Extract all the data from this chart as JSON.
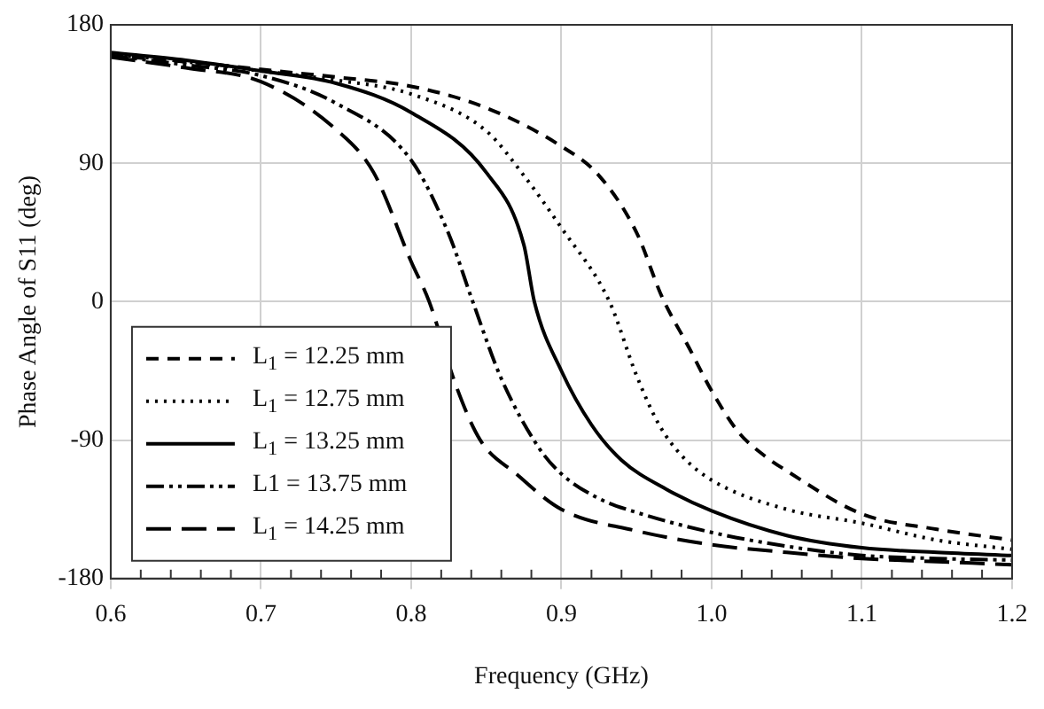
{
  "chart_data": {
    "type": "line",
    "xlabel": "Frequency (GHz)",
    "ylabel": "Phase Angle of S11 (deg)",
    "xlim": [
      0.6,
      1.2
    ],
    "xticks": [
      0.6,
      {
        "value": 0.7,
        "label": "0.7"
      },
      0.8,
      0.9,
      {
        "value": 1.0,
        "label": "1.0"
      },
      1.1,
      1.2
    ],
    "ylim": [
      -180,
      180
    ],
    "yticks": [
      -180,
      -90,
      0,
      90,
      180
    ],
    "grid": true,
    "legend": "bottom left",
    "marker": "none",
    "series": [
      {
        "name": "L$_{1}$ = 12.25 mm",
        "color": "#000000",
        "line_style": "dashed",
        "x": [
          0.6,
          0.65,
          0.7,
          0.75,
          0.8,
          0.85,
          0.9,
          0.925,
          0.95,
          0.967,
          0.985,
          1.0,
          1.018,
          1.035,
          1.05,
          1.1,
          1.15,
          1.2
        ],
        "values": [
          160,
          156,
          151,
          146,
          140,
          126,
          101,
          82,
          45,
          3,
          -30,
          -58,
          -85,
          -100,
          -110,
          -138,
          -148,
          -155
        ]
      },
      {
        "name": "L$_{1}$ = 12.75 mm",
        "color": "#000000",
        "line_style": "dotted",
        "x": [
          0.6,
          0.65,
          0.7,
          0.75,
          0.8,
          0.85,
          0.875,
          0.9,
          0.932,
          0.95,
          0.965,
          0.98,
          1.0,
          1.05,
          1.1,
          1.15,
          1.2
        ],
        "values": [
          161,
          156,
          150,
          144,
          135,
          111,
          82,
          48,
          0,
          -48,
          -80,
          -100,
          -116,
          -135,
          -144,
          -155,
          -161
        ]
      },
      {
        "name": "L$_{1}$ = 13.25 mm",
        "color": "#000000",
        "line_style": "solid",
        "x": [
          0.6,
          0.65,
          0.7,
          0.75,
          0.8,
          0.85,
          0.875,
          0.882,
          0.9,
          0.92,
          0.94,
          0.97,
          1.0,
          1.05,
          1.1,
          1.15,
          1.2
        ],
        "values": [
          162,
          157,
          150,
          142,
          123,
          84,
          37,
          0,
          -45,
          -80,
          -103,
          -122,
          -136,
          -152,
          -160,
          -163,
          -165
        ]
      },
      {
        "name": "L1 = 13.75 mm",
        "color": "#000000",
        "line_style": "dashdot",
        "x": [
          0.6,
          0.65,
          0.7,
          0.75,
          0.8,
          0.825,
          0.841,
          0.86,
          0.885,
          0.9,
          0.925,
          0.95,
          1.0,
          1.05,
          1.1,
          1.15,
          1.2
        ],
        "values": [
          160,
          154,
          147,
          129,
          92,
          44,
          0,
          -50,
          -95,
          -112,
          -128,
          -137,
          -150,
          -159,
          -165,
          -167,
          -168
        ]
      },
      {
        "name": "L$_{1}$ = 14.25 mm",
        "color": "#000000",
        "line_style": "longdashed",
        "x": [
          0.6,
          0.65,
          0.7,
          0.75,
          0.775,
          0.8,
          0.812,
          0.83,
          0.846,
          0.87,
          0.9,
          0.95,
          1.0,
          1.05,
          1.1,
          1.15,
          1.2
        ],
        "values": [
          159,
          152,
          143,
          112,
          84,
          26,
          0,
          -55,
          -90,
          -112,
          -135,
          -149,
          -158,
          -163,
          -167,
          -169,
          -171
        ]
      }
    ]
  }
}
